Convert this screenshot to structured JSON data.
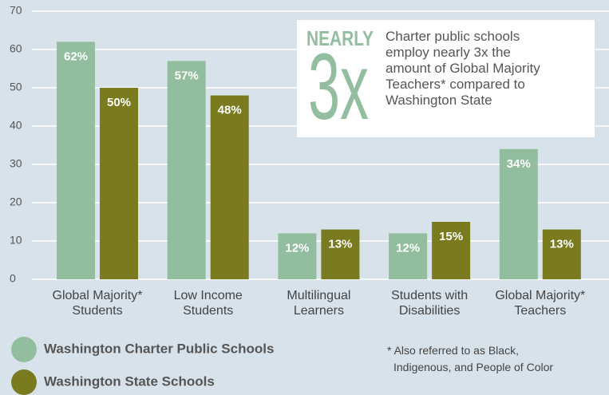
{
  "chart_data": {
    "type": "bar",
    "categories": [
      "Global Majority*\nStudents",
      "Low Income\nStudents",
      "Multilingual\nLearners",
      "Students with\nDisabilities",
      "Global Majority*\nTeachers"
    ],
    "series": [
      {
        "name": "Washington Charter Public Schools",
        "color": "#92bd9e",
        "values": [
          62,
          57,
          12,
          12,
          34
        ],
        "value_labels": [
          "62%",
          "57%",
          "12%",
          "12%",
          "34%"
        ]
      },
      {
        "name": "Washington State Schools",
        "color": "#7a7a1f",
        "values": [
          50,
          48,
          13,
          15,
          13
        ],
        "value_labels": [
          "50%",
          "48%",
          "13%",
          "15%",
          "13%"
        ]
      }
    ],
    "ylim": [
      0,
      70
    ],
    "yticks": [
      0,
      10,
      20,
      30,
      40,
      50,
      60,
      70
    ],
    "grid": true,
    "callout": {
      "kicker": "NEARLY",
      "big": "3x",
      "text": "Charter public schools\nemploy nearly 3x the\namount of Global Majority\nTeachers* compared to\nWashington State"
    },
    "footnote": "* Also referred to as Black,\nIndigenous, and People of Color"
  }
}
